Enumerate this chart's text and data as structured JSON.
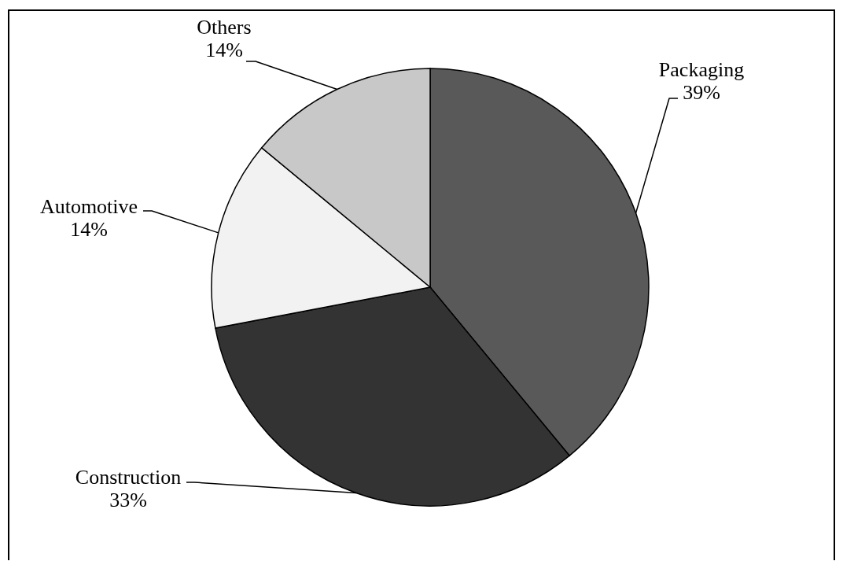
{
  "chart_data": {
    "type": "pie",
    "categories": [
      "Packaging",
      "Construction",
      "Automotive",
      "Others"
    ],
    "values": [
      39,
      33,
      14,
      14
    ],
    "colors": [
      "#595959",
      "#333333",
      "#f2f2f2",
      "#c8c8c8"
    ],
    "value_labels": [
      "39%",
      "33%",
      "14%",
      "14%"
    ],
    "legend": false
  }
}
